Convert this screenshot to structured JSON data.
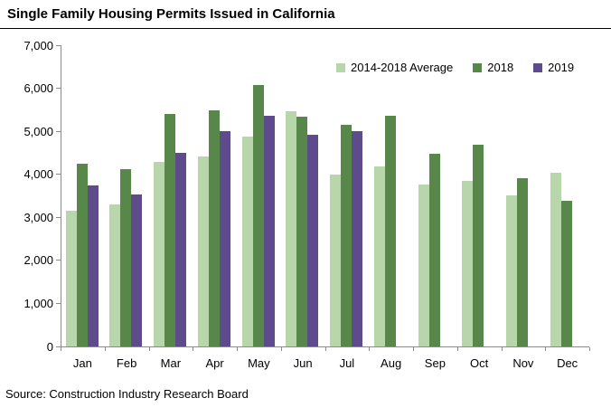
{
  "source_note": "Source: Construction Industry Research Board",
  "colors": {
    "avg_series": "#b7d7aa",
    "series_2018": "#588849",
    "series_2019": "#5e4b8b",
    "axis": "#8a8a8a",
    "text": "#000000",
    "title_divider": "#000000"
  },
  "chart_data": {
    "type": "bar",
    "title": "Single Family Housing Permits Issued in California",
    "xlabel": "",
    "ylabel": "",
    "categories": [
      "Jan",
      "Feb",
      "Mar",
      "Apr",
      "May",
      "Jun",
      "Jul",
      "Aug",
      "Sep",
      "Oct",
      "Nov",
      "Dec"
    ],
    "series": [
      {
        "name": "2014-2018 Average",
        "color": "#b7d7aa",
        "values": [
          3150,
          3300,
          4280,
          4410,
          4870,
          5460,
          3990,
          4180,
          3760,
          3850,
          3520,
          4040
        ]
      },
      {
        "name": "2018",
        "color": "#588849",
        "values": [
          4240,
          4130,
          5410,
          5480,
          6080,
          5340,
          5150,
          5350,
          4470,
          4690,
          3910,
          3390
        ]
      },
      {
        "name": "2019",
        "color": "#5e4b8b",
        "values": [
          3740,
          3540,
          4490,
          5000,
          5360,
          4920,
          5000,
          null,
          null,
          null,
          null,
          null
        ]
      }
    ],
    "ylim": [
      0,
      7000
    ],
    "yticks": [
      0,
      1000,
      2000,
      3000,
      4000,
      5000,
      6000,
      7000
    ],
    "ytick_labels": [
      "0",
      "1,000",
      "2,000",
      "3,000",
      "4,000",
      "5,000",
      "6,000",
      "7,000"
    ],
    "grid": false,
    "legend_position": "top-right"
  }
}
